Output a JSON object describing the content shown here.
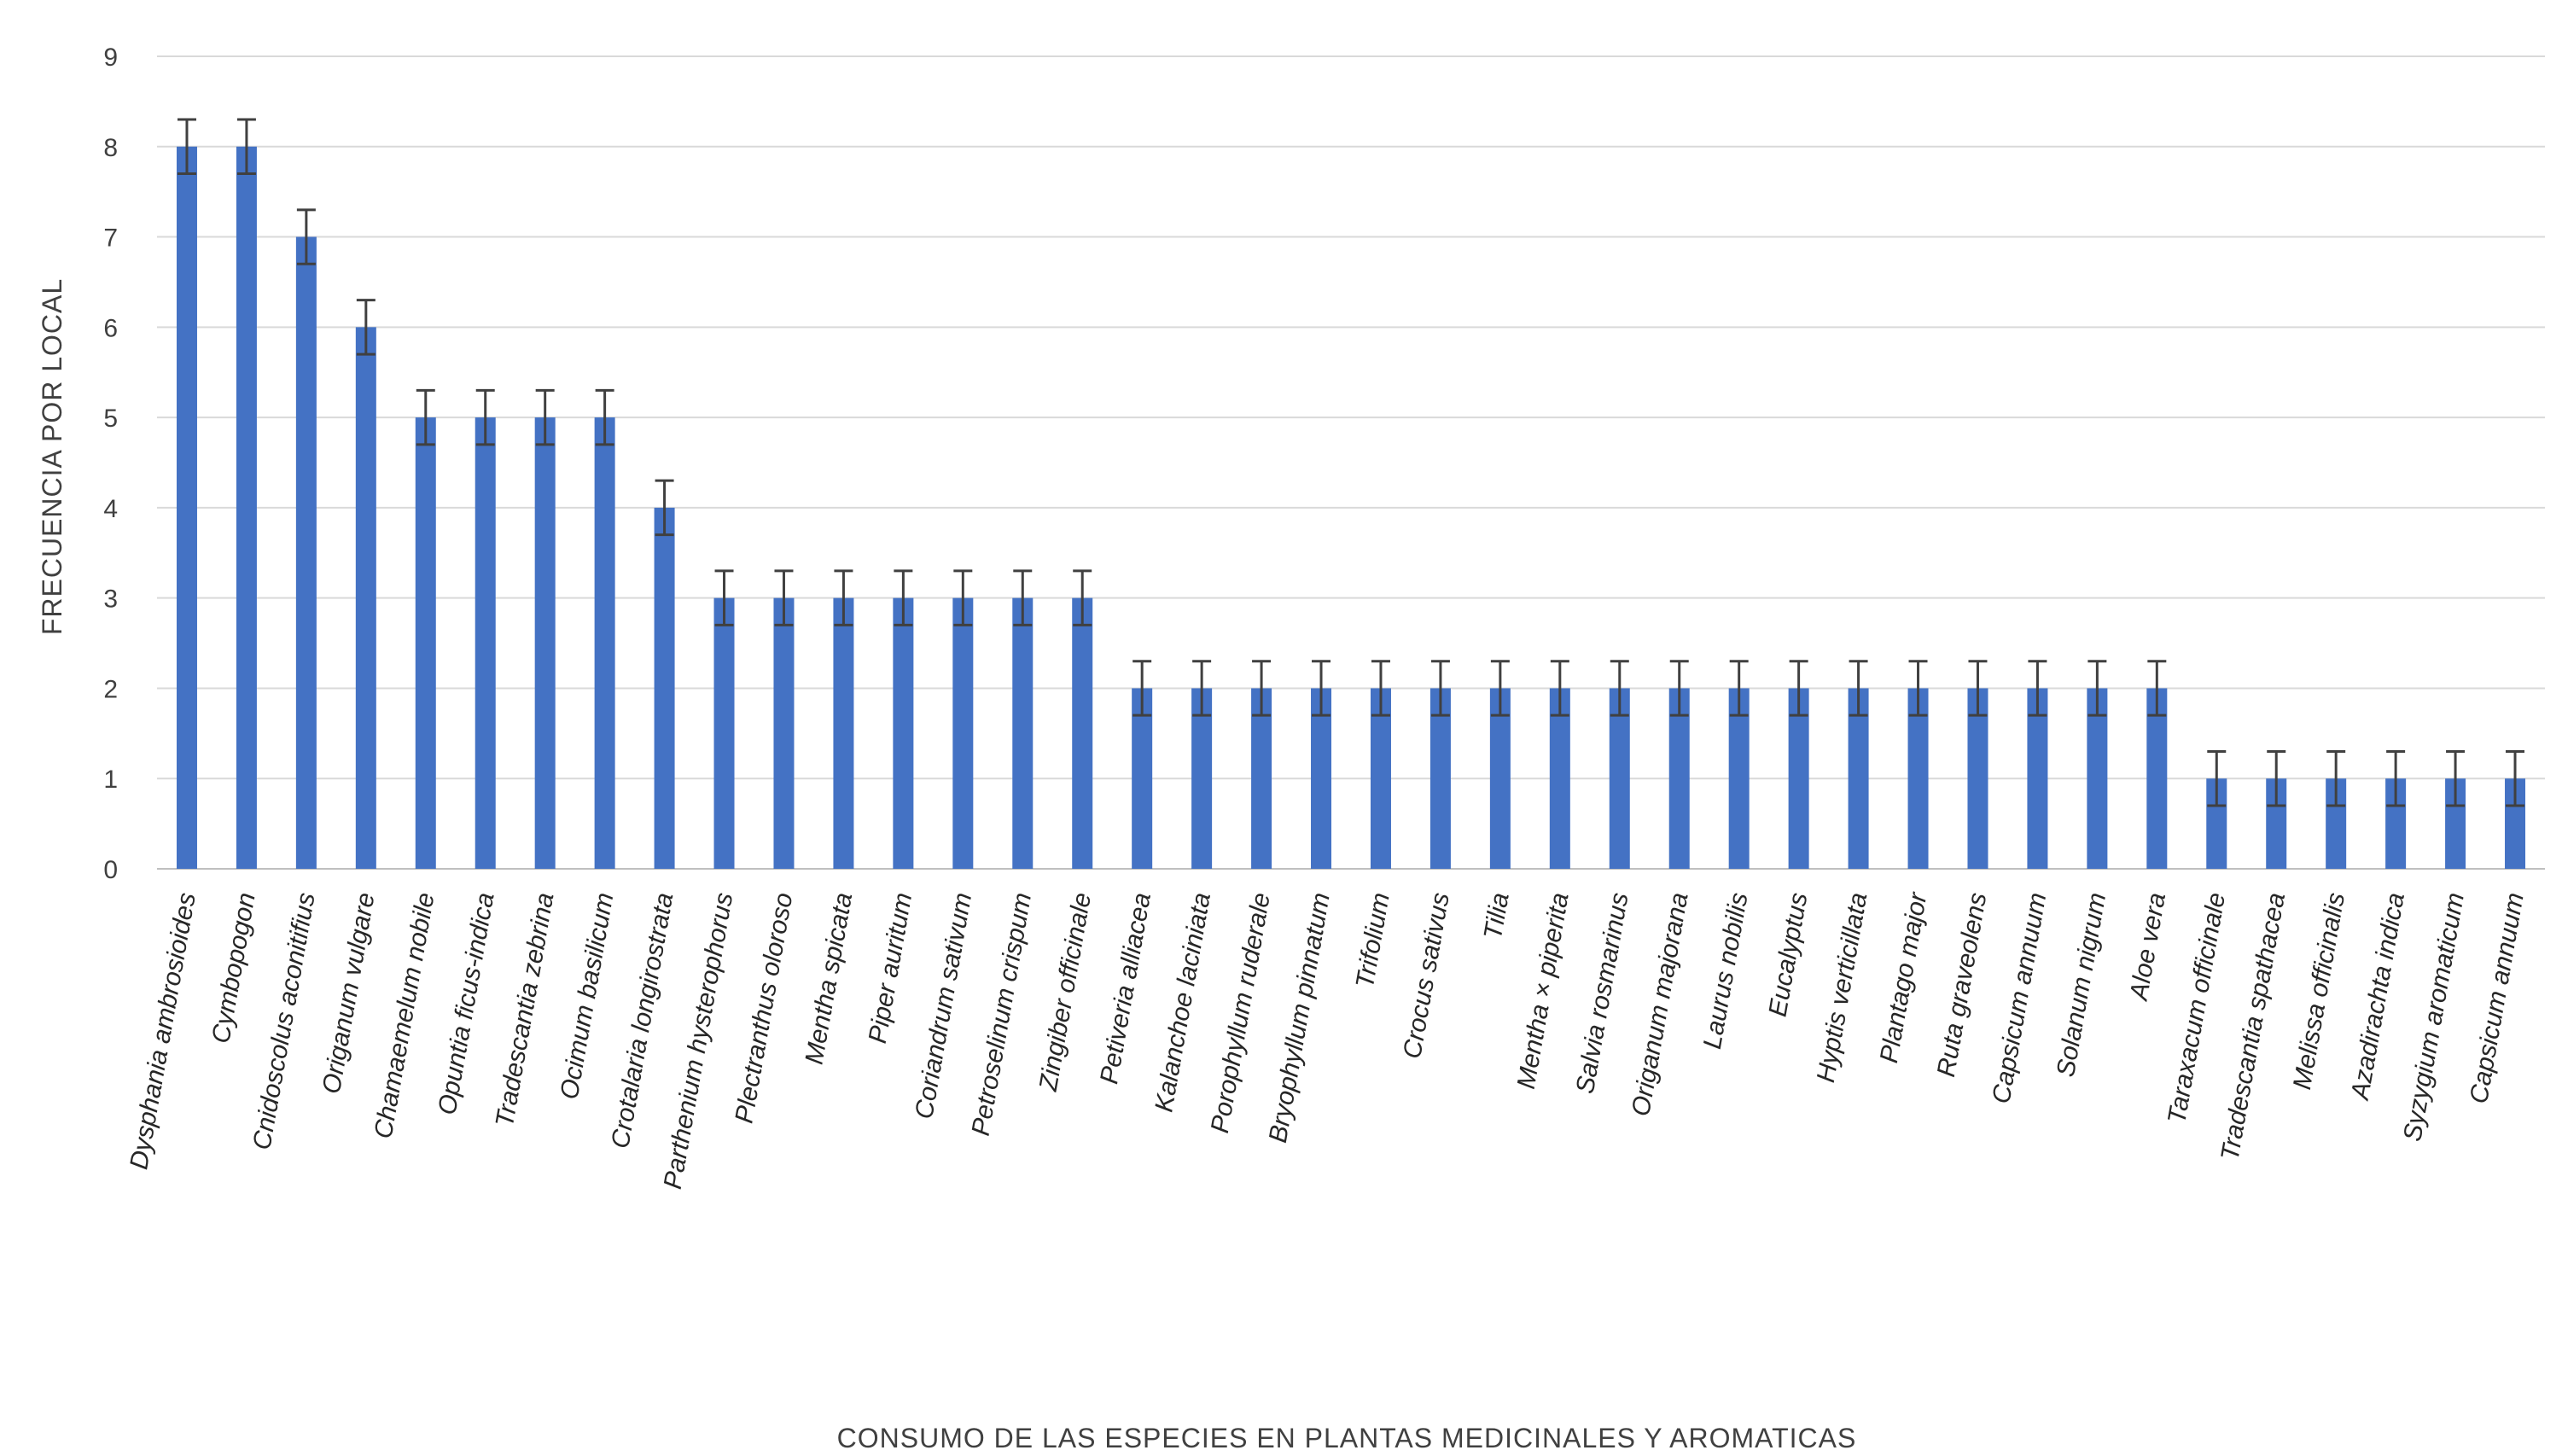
{
  "chart_data": {
    "type": "bar",
    "title": "",
    "xlabel": "CONSUMO DE LAS ESPECIES EN PLANTAS MEDICINALES Y AROMATICAS",
    "ylabel": "FRECUENCIA POR  LOCAL",
    "ylim": [
      0,
      9
    ],
    "yticks": [
      0,
      1,
      2,
      3,
      4,
      5,
      6,
      7,
      8,
      9
    ],
    "grid": true,
    "legend": "none",
    "bar_color": "#4472c4",
    "error_bar_color": "#404040",
    "error": 0.3,
    "categories": [
      "Dysphania  ambrosioides",
      "Cymbopogon",
      "Cnidoscolus  aconitifius",
      "Origanum  vulgare",
      "Chamaemelum nobile",
      "Opuntia ficus-indica",
      "Tradescantia  zebrina",
      "Ocimum basilicum",
      "Crotalaria longirostrata",
      "Parthenium hysterophorus",
      "Plectranthus  oloroso",
      "Mentha spicata",
      "Piper  auritum",
      "Coriandrum sativum",
      "Petroselinum crispum",
      "Zingiber officinale",
      "Petiveria  alliacea",
      "Kalanchoe laciniata",
      "Porophyllum ruderale",
      "Bryophyllum pinnatum",
      "Trifolium",
      "Crocus sativus",
      "Tilia",
      "Mentha × piperita",
      "Salvia rosmarinus",
      "Origanum  majorana",
      "Laurus nobilis",
      "Eucalyptus",
      "Hyptis verticillata",
      "Plantago major",
      "Ruta graveolens",
      "Capsicum annuum",
      "Solanum nigrum",
      "Aloe vera",
      "Taraxacum officinale",
      "Tradescantia spathacea",
      "Melissa officinalis",
      "Azadirachta indica",
      "Syzygium aromaticum",
      "Capsicum annuum"
    ],
    "values": [
      8,
      8,
      7,
      6,
      5,
      5,
      5,
      5,
      4,
      3,
      3,
      3,
      3,
      3,
      3,
      3,
      2,
      2,
      2,
      2,
      2,
      2,
      2,
      2,
      2,
      2,
      2,
      2,
      2,
      2,
      2,
      2,
      2,
      2,
      1,
      1,
      1,
      1,
      1,
      1
    ]
  }
}
